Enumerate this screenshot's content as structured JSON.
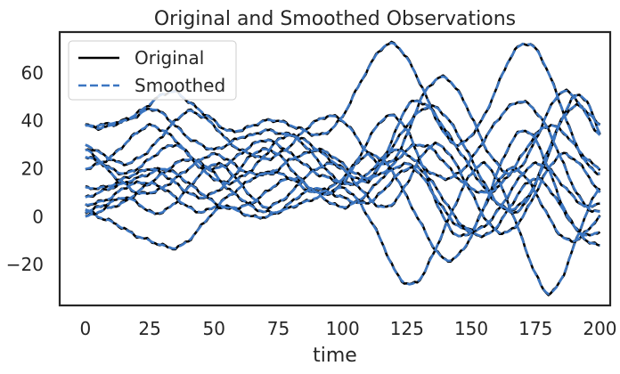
{
  "chart_data": {
    "type": "line",
    "title": "Original and Smoothed Observations",
    "xlabel": "time",
    "ylabel": "",
    "xlim": [
      -10,
      204
    ],
    "ylim": [
      -37,
      77
    ],
    "xticks": [
      0,
      25,
      50,
      75,
      100,
      125,
      150,
      175,
      200
    ],
    "yticks": [
      -20,
      0,
      20,
      40,
      60
    ],
    "ytick_labels": [
      "−20",
      "0",
      "20",
      "40",
      "60"
    ],
    "grid": false,
    "legend": {
      "placement": "top-left",
      "entries": [
        {
          "label": "Original",
          "color": "#000000",
          "style": "solid"
        },
        {
          "label": "Smoothed",
          "color": "#3b76c2",
          "style": "dashed"
        }
      ]
    },
    "x_sample_step": 5,
    "series": [
      {
        "values": [
          38,
          37,
          38,
          40,
          42,
          45,
          43,
          38,
          33,
          30,
          28,
          30,
          33,
          34,
          36,
          35,
          34,
          32,
          28,
          24,
          20,
          16,
          15,
          22,
          34,
          46,
          48,
          44,
          36,
          28,
          20,
          12,
          6,
          3,
          6,
          14,
          26,
          40,
          50,
          48,
          35
        ]
      },
      {
        "values": [
          38,
          38,
          39,
          40,
          43,
          47,
          51,
          52,
          48,
          44,
          40,
          36,
          36,
          38,
          40,
          40,
          38,
          36,
          34,
          36,
          42,
          52,
          62,
          70,
          72,
          66,
          56,
          44,
          34,
          30,
          34,
          42,
          54,
          66,
          72,
          70,
          60,
          46,
          32,
          22,
          18
        ]
      },
      {
        "values": [
          30,
          27,
          24,
          22,
          24,
          28,
          34,
          40,
          44,
          42,
          38,
          32,
          28,
          26,
          24,
          26,
          30,
          36,
          40,
          42,
          40,
          34,
          26,
          22,
          24,
          34,
          48,
          56,
          58,
          52,
          42,
          30,
          22,
          18,
          22,
          32,
          44,
          52,
          50,
          42,
          34
        ]
      },
      {
        "values": [
          20,
          22,
          25,
          30,
          35,
          38,
          36,
          32,
          26,
          20,
          16,
          14,
          16,
          20,
          26,
          32,
          34,
          30,
          24,
          18,
          14,
          14,
          18,
          24,
          28,
          26,
          22,
          18,
          16,
          18,
          24,
          32,
          40,
          46,
          48,
          44,
          36,
          24,
          12,
          4,
          2
        ]
      },
      {
        "values": [
          25,
          23,
          20,
          18,
          20,
          24,
          28,
          30,
          26,
          22,
          20,
          22,
          26,
          30,
          32,
          30,
          26,
          22,
          18,
          16,
          14,
          14,
          16,
          22,
          30,
          38,
          44,
          46,
          42,
          34,
          24,
          14,
          6,
          2,
          4,
          14,
          28,
          40,
          46,
          44,
          38
        ]
      },
      {
        "values": [
          28,
          24,
          18,
          14,
          10,
          10,
          12,
          16,
          20,
          24,
          26,
          24,
          20,
          18,
          18,
          20,
          24,
          26,
          28,
          26,
          22,
          18,
          16,
          18,
          22,
          28,
          30,
          28,
          22,
          16,
          12,
          10,
          12,
          18,
          26,
          34,
          38,
          36,
          30,
          24,
          20
        ]
      },
      {
        "values": [
          12,
          12,
          13,
          16,
          18,
          20,
          18,
          14,
          10,
          8,
          10,
          14,
          20,
          26,
          28,
          26,
          20,
          14,
          10,
          10,
          14,
          22,
          32,
          40,
          42,
          36,
          24,
          10,
          -2,
          -8,
          -6,
          4,
          18,
          30,
          36,
          32,
          20,
          6,
          -4,
          -8,
          -6
        ]
      },
      {
        "values": [
          5,
          6,
          8,
          12,
          14,
          14,
          12,
          8,
          4,
          2,
          4,
          8,
          12,
          16,
          18,
          18,
          16,
          12,
          10,
          12,
          16,
          22,
          26,
          24,
          18,
          8,
          -2,
          -12,
          -18,
          -16,
          -8,
          4,
          14,
          20,
          18,
          10,
          0,
          -8,
          -10,
          -6,
          0
        ]
      },
      {
        "values": [
          2,
          4,
          6,
          8,
          6,
          2,
          2,
          6,
          12,
          18,
          22,
          20,
          14,
          8,
          4,
          6,
          10,
          16,
          20,
          22,
          20,
          14,
          8,
          4,
          6,
          14,
          24,
          30,
          28,
          20,
          10,
          0,
          -6,
          -6,
          0,
          10,
          20,
          26,
          24,
          18,
          10
        ]
      },
      {
        "values": [
          3,
          0,
          -2,
          -5,
          -8,
          -10,
          -12,
          -13,
          -10,
          -4,
          2,
          4,
          2,
          0,
          0,
          2,
          6,
          10,
          12,
          10,
          8,
          6,
          6,
          10,
          16,
          20,
          20,
          14,
          6,
          -2,
          -6,
          -8,
          -4,
          4,
          12,
          16,
          12,
          4,
          -4,
          -10,
          -12
        ]
      },
      {
        "values": [
          0,
          2,
          4,
          6,
          10,
          14,
          18,
          22,
          24,
          22,
          18,
          12,
          8,
          4,
          2,
          2,
          4,
          6,
          8,
          10,
          12,
          8,
          0,
          -10,
          -22,
          -28,
          -26,
          -16,
          -4,
          8,
          18,
          22,
          16,
          4,
          -10,
          -24,
          -32,
          -26,
          -12,
          2,
          12
        ]
      },
      {
        "values": [
          8,
          10,
          12,
          14,
          16,
          18,
          20,
          18,
          14,
          10,
          6,
          4,
          4,
          6,
          10,
          14,
          16,
          14,
          10,
          6,
          4,
          6,
          10,
          16,
          20,
          22,
          18,
          10,
          2,
          -4,
          -6,
          -4,
          2,
          10,
          18,
          22,
          20,
          14,
          8,
          4,
          6
        ]
      }
    ]
  }
}
